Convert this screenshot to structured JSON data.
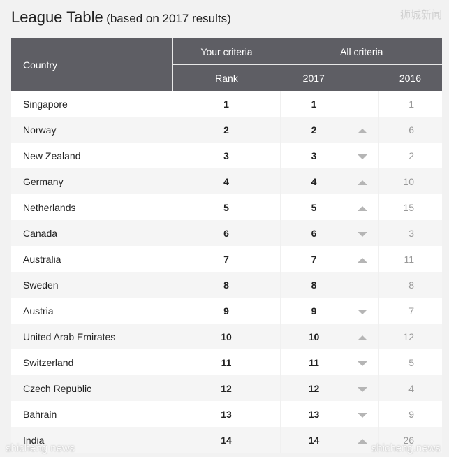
{
  "title": {
    "main": "League Table",
    "sub": "(based on 2017 results)"
  },
  "watermarks": {
    "top_right": "狮城新闻",
    "bottom_left": "shicheng news",
    "bottom_right": "shicheng.news"
  },
  "header": {
    "country": "Country",
    "your_criteria": "Your criteria",
    "all_criteria": "All criteria",
    "rank": "Rank",
    "y2017": "2017",
    "y2016": "2016"
  },
  "rows": [
    {
      "country": "Singapore",
      "rank": "1",
      "r2017": "1",
      "trend": "none",
      "r2016": "1"
    },
    {
      "country": "Norway",
      "rank": "2",
      "r2017": "2",
      "trend": "up",
      "r2016": "6"
    },
    {
      "country": "New Zealand",
      "rank": "3",
      "r2017": "3",
      "trend": "down",
      "r2016": "2"
    },
    {
      "country": "Germany",
      "rank": "4",
      "r2017": "4",
      "trend": "up",
      "r2016": "10"
    },
    {
      "country": "Netherlands",
      "rank": "5",
      "r2017": "5",
      "trend": "up",
      "r2016": "15"
    },
    {
      "country": "Canada",
      "rank": "6",
      "r2017": "6",
      "trend": "down",
      "r2016": "3"
    },
    {
      "country": "Australia",
      "rank": "7",
      "r2017": "7",
      "trend": "up",
      "r2016": "11"
    },
    {
      "country": "Sweden",
      "rank": "8",
      "r2017": "8",
      "trend": "none",
      "r2016": "8"
    },
    {
      "country": "Austria",
      "rank": "9",
      "r2017": "9",
      "trend": "down",
      "r2016": "7"
    },
    {
      "country": "United Arab Emirates",
      "rank": "10",
      "r2017": "10",
      "trend": "up",
      "r2016": "12"
    },
    {
      "country": "Switzerland",
      "rank": "11",
      "r2017": "11",
      "trend": "down",
      "r2016": "5"
    },
    {
      "country": "Czech Republic",
      "rank": "12",
      "r2017": "12",
      "trend": "down",
      "r2016": "4"
    },
    {
      "country": "Bahrain",
      "rank": "13",
      "r2017": "13",
      "trend": "down",
      "r2016": "9"
    },
    {
      "country": "India",
      "rank": "14",
      "r2017": "14",
      "trend": "up",
      "r2016": "26"
    }
  ]
}
